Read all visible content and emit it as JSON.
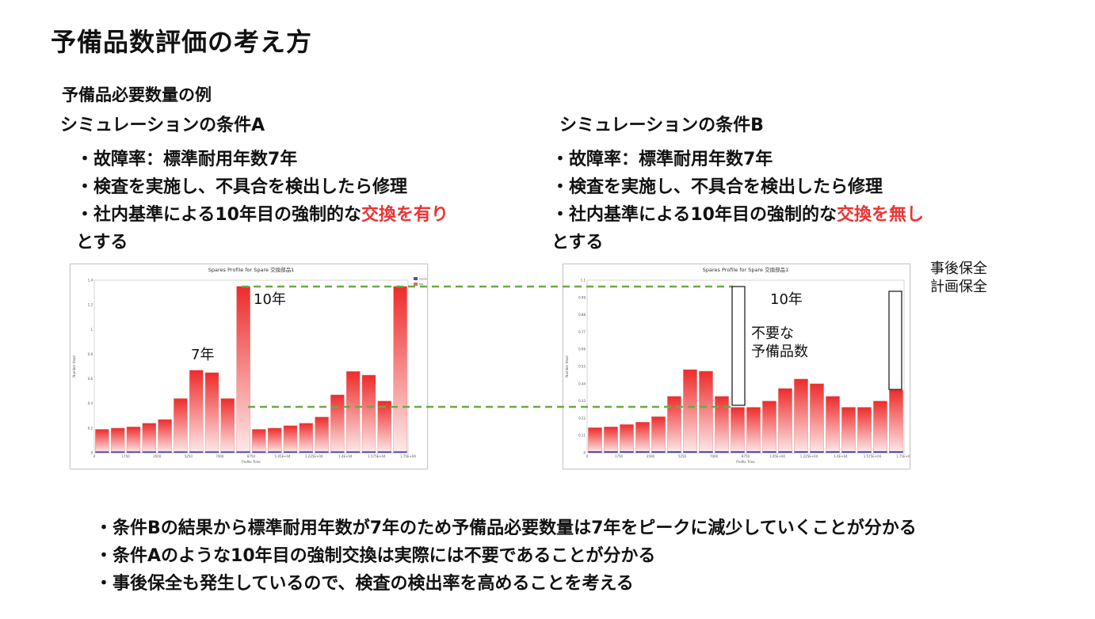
{
  "title": "予備品数評価の考え方",
  "subtitle": "予備品必要数量の例",
  "condA": {
    "heading": "シミュレーションの条件A",
    "bullets": [
      "・故障率：標準耐用年数7年",
      "・検査を実施し、不具合を検出したら修理"
    ],
    "last_pre": "・社内基準による10年目の強制的な",
    "last_red": "交換を有り",
    "last_cont": "とする"
  },
  "condB": {
    "heading": "シミュレーションの条件B",
    "bullets": [
      "・故障率：標準耐用年数7年",
      "・検査を実施し、不具合を検出したら修理"
    ],
    "last_pre": "・社内基準による10年目の強制的な",
    "last_red": "交換を無し",
    "last_cont": "とする"
  },
  "legend": {
    "corrective": "事後保全",
    "planned": "計画保全"
  },
  "annotations": {
    "year7": "7年",
    "year10_a": "10年",
    "year10_b": "10年",
    "unnecessary_1": "不要な",
    "unnecessary_2": "予備品数"
  },
  "chart_data": [
    {
      "type": "bar",
      "title": "Spares Profile for Spare 交換部品1",
      "xlabel": "Profile Time",
      "ylabel": "Number Used",
      "x_ticks": [
        "0",
        "1750",
        "3500",
        "5250",
        "7000",
        "8750",
        "1.05E+04",
        "1.225E+04",
        "1.4E+04",
        "1.575E+04",
        "1.75E+04"
      ],
      "y_ticks": [
        "0",
        "0.2",
        "0.4",
        "0.6",
        "0.8",
        "1",
        "1.2",
        "1.4"
      ],
      "ylim": [
        0,
        1.4
      ],
      "legend_entries": [
        "Corrective",
        "PM"
      ],
      "series": [
        {
          "name": "PM",
          "values": [
            0.19,
            0.2,
            0.21,
            0.24,
            0.27,
            0.44,
            0.67,
            0.65,
            0.44,
            1.35,
            0.19,
            0.2,
            0.22,
            0.24,
            0.29,
            0.47,
            0.66,
            0.63,
            0.42,
            1.35
          ]
        },
        {
          "name": "Corrective",
          "values": [
            0.01,
            0.01,
            0.01,
            0.01,
            0.01,
            0.01,
            0.01,
            0.01,
            0.01,
            0.01,
            0.01,
            0.01,
            0.01,
            0.01,
            0.01,
            0.01,
            0.01,
            0.01,
            0.01,
            0.01
          ]
        }
      ]
    },
    {
      "type": "bar",
      "title": "Spares Profile for Spare 交換部品1",
      "xlabel": "Profile Time",
      "ylabel": "Number Used",
      "x_ticks": [
        "0",
        "1750",
        "3500",
        "5250",
        "7000",
        "8750",
        "1.05E+04",
        "1.225E+04",
        "1.4E+04",
        "1.575E+04",
        "1.75E+04"
      ],
      "y_ticks": [
        "0",
        "0.11",
        "0.22",
        "0.33",
        "0.44",
        "0.55",
        "0.66",
        "0.77",
        "0.88",
        "0.99",
        "1.1"
      ],
      "ylim": [
        0,
        1.1
      ],
      "legend_entries": [
        "Corrective",
        "PM"
      ],
      "series": [
        {
          "name": "PM",
          "values": [
            0.16,
            0.165,
            0.18,
            0.195,
            0.23,
            0.36,
            0.53,
            0.52,
            0.36,
            0.29,
            0.29,
            0.33,
            0.41,
            0.47,
            0.44,
            0.36,
            0.29,
            0.29,
            0.33,
            0.4
          ]
        },
        {
          "name": "Corrective",
          "values": [
            0.01,
            0.01,
            0.01,
            0.01,
            0.01,
            0.01,
            0.01,
            0.01,
            0.01,
            0.01,
            0.01,
            0.01,
            0.01,
            0.01,
            0.01,
            0.01,
            0.01,
            0.01,
            0.01,
            0.01
          ]
        }
      ]
    }
  ],
  "conclusions": [
    "・条件Bの結果から標準耐用年数が7年のため予備品必要数量は7年をピークに減少していくことが分かる",
    "・条件Aのような10年目の強制交換は実際には不要であることが分かる",
    "・事後保全も発生しているので、検査の検出率を高めることを考える"
  ]
}
